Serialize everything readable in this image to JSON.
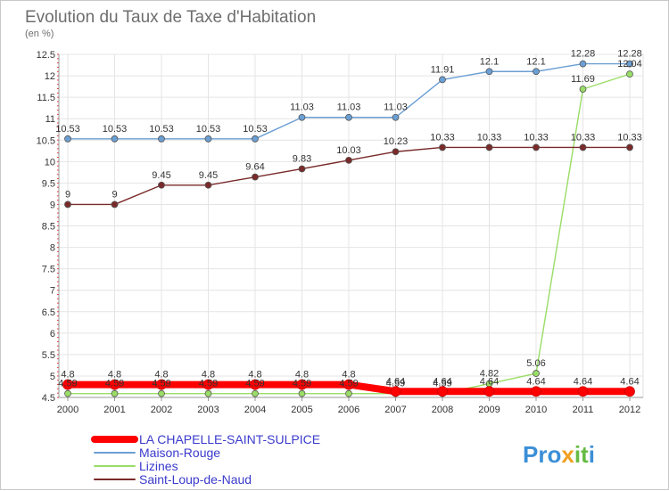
{
  "chart_data": {
    "type": "line",
    "title": "Evolution du Taux de Taxe d'Habitation",
    "subtitle": "(en %)",
    "x": [
      "2000",
      "2001",
      "2002",
      "2003",
      "2004",
      "2005",
      "2006",
      "2007",
      "2008",
      "2009",
      "2010",
      "2011",
      "2012"
    ],
    "ylim": [
      4.5,
      12.5
    ],
    "yticks": [
      "4.5",
      "5",
      "5.5",
      "6",
      "6.5",
      "7",
      "7.5",
      "8",
      "8.5",
      "9",
      "9.5",
      "10",
      "10.5",
      "11",
      "11.5",
      "12",
      "12.5"
    ],
    "grid": true,
    "legend_position": "bottom-left",
    "series": [
      {
        "name": "LA CHAPELLE-SAINT-SULPICE",
        "color": "#ff0000",
        "values": [
          4.8,
          4.8,
          4.8,
          4.8,
          4.8,
          4.8,
          4.8,
          4.64,
          4.64,
          4.64,
          4.64,
          4.64,
          4.64
        ],
        "labels": [
          "4.8",
          "4.8",
          "4.8",
          "4.8",
          "4.8",
          "4.8",
          "4.8",
          "4.64",
          "4.64",
          "4.64",
          "4.64",
          "4.64",
          "4.64"
        ]
      },
      {
        "name": "Maison-Rouge",
        "color": "#6b9fd4",
        "values": [
          10.53,
          10.53,
          10.53,
          10.53,
          10.53,
          11.03,
          11.03,
          11.03,
          11.91,
          12.1,
          12.1,
          12.28,
          12.28
        ],
        "labels": [
          "10.53",
          "10.53",
          "10.53",
          "10.53",
          "10.53",
          "11.03",
          "11.03",
          "11.03",
          "11.91",
          "12.1",
          "12.1",
          "12.28",
          "12.28"
        ]
      },
      {
        "name": "Lizines",
        "color": "#99dd66",
        "values": [
          4.59,
          4.59,
          4.59,
          4.59,
          4.59,
          4.59,
          4.59,
          4.59,
          4.59,
          4.82,
          5.06,
          11.69,
          12.04
        ],
        "labels": [
          "4.59",
          "4.59",
          "4.59",
          "4.59",
          "4.59",
          "4.59",
          "4.59",
          "4.59",
          "4.59",
          "4.82",
          "5.06",
          "11.69",
          "12.04"
        ]
      },
      {
        "name": "Saint-Loup-de-Naud",
        "color": "#7a2a2a",
        "values": [
          9,
          9,
          9.45,
          9.45,
          9.64,
          9.83,
          10.03,
          10.23,
          10.33,
          10.33,
          10.33,
          10.33,
          10.33
        ],
        "labels": [
          "9",
          "9",
          "9.45",
          "9.45",
          "9.64",
          "9.83",
          "10.03",
          "10.23",
          "10.33",
          "10.33",
          "10.33",
          "10.33",
          "10.33"
        ]
      }
    ]
  },
  "logo": {
    "text": "Proxiti"
  }
}
